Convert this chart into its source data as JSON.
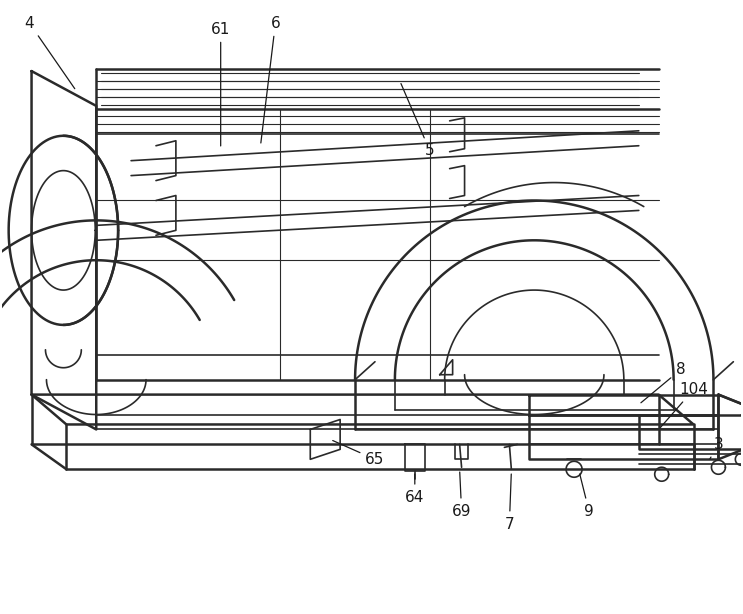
{
  "bg_color": "#ffffff",
  "line_color": "#2a2a2a",
  "lw_thick": 1.8,
  "lw_med": 1.2,
  "lw_thin": 0.8,
  "ann_fs": 11,
  "ann_color": "#1a1a1a"
}
